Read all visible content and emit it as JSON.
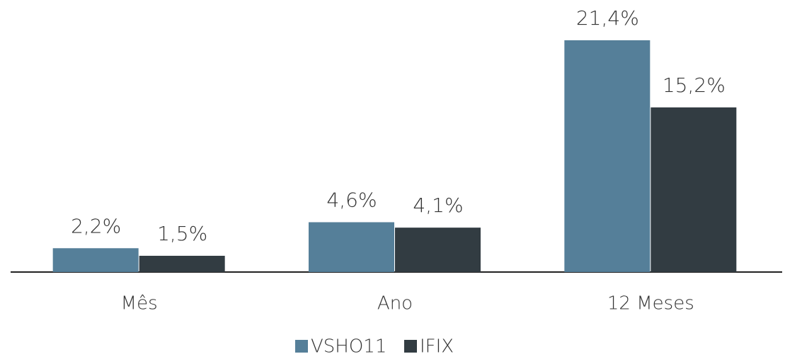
{
  "chart_data": {
    "type": "bar",
    "categories": [
      "Mês",
      "Ano",
      "12 Meses"
    ],
    "series": [
      {
        "name": "VSHO11",
        "color": "#557f99",
        "values": [
          2.2,
          4.6,
          21.4
        ],
        "value_labels": [
          "2,2%",
          "4,6%",
          "21,4%"
        ]
      },
      {
        "name": "IFIX",
        "color": "#323c42",
        "values": [
          1.5,
          4.1,
          15.2
        ],
        "value_labels": [
          "1,5%",
          "4,1%",
          "15,2%"
        ]
      }
    ],
    "legend": "bottom"
  }
}
